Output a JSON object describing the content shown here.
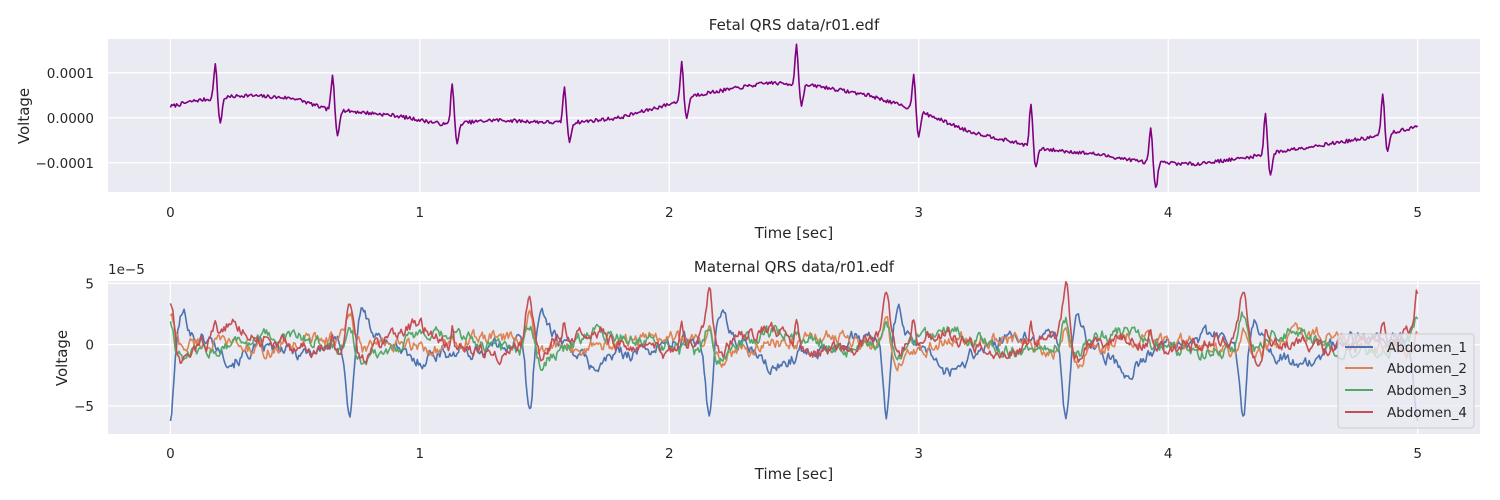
{
  "chart_data": [
    {
      "type": "line",
      "title": "Fetal QRS data/r01.edf",
      "xlabel": "Time [sec]",
      "ylabel": "Voltage",
      "xlim": [
        -0.25,
        5.25
      ],
      "ylim": [
        -0.000165,
        0.000175
      ],
      "xticks": [
        0,
        1,
        2,
        3,
        4,
        5
      ],
      "xtick_labels": [
        "0",
        "1",
        "2",
        "3",
        "4",
        "5"
      ],
      "yticks": [
        0.0001,
        0.0,
        -0.0001
      ],
      "ytick_labels": [
        "0.0001",
        "0.0000",
        "−0.0001"
      ],
      "series": [
        {
          "name": "Fetal QRS",
          "color": "#800080",
          "baseline": [
            [
              0.0,
              2.5e-05
            ],
            [
              0.1,
              3.8e-05
            ],
            [
              0.3,
              5e-05
            ],
            [
              0.5,
              4.3e-05
            ],
            [
              0.62,
              2e-05
            ],
            [
              0.9,
              5e-06
            ],
            [
              1.1,
              -1.5e-05
            ],
            [
              1.3,
              -5e-06
            ],
            [
              1.6,
              -1.2e-05
            ],
            [
              1.8,
              0.0
            ],
            [
              2.0,
              3e-05
            ],
            [
              2.1,
              5e-05
            ],
            [
              2.4,
              7.8e-05
            ],
            [
              2.6,
              7e-05
            ],
            [
              2.8,
              5e-05
            ],
            [
              3.0,
              1.5e-05
            ],
            [
              3.2,
              -3e-05
            ],
            [
              3.5,
              -7e-05
            ],
            [
              3.7,
              -8e-05
            ],
            [
              3.9,
              -9.8e-05
            ],
            [
              4.1,
              -0.000103
            ],
            [
              4.3,
              -9e-05
            ],
            [
              4.5,
              -7e-05
            ],
            [
              4.8,
              -4.5e-05
            ],
            [
              5.0,
              -2e-05
            ]
          ],
          "qrs_times": [
            0.18,
            0.65,
            1.13,
            1.58,
            2.05,
            2.51,
            2.98,
            3.45,
            3.93,
            4.39,
            4.86
          ],
          "qrs_peaks": [
            0.00012,
            9.2e-05,
            7.8e-05,
            7e-05,
            0.000122,
            0.000162,
            9.8e-05,
            3e-05,
            -2.5e-05,
            1e-05,
            5.2e-05
          ],
          "qrs_troughs": [
            -1.2e-05,
            -3.8e-05,
            -5.8e-05,
            -5.2e-05,
            -5e-06,
            3e-05,
            -3.8e-05,
            -0.000108,
            -0.000158,
            -0.000128,
            -7.8e-05
          ]
        }
      ]
    },
    {
      "type": "line",
      "title": "Maternal QRS data/r01.edf",
      "xlabel": "Time [sec]",
      "ylabel": "Voltage",
      "scale_label": "1e−5",
      "xlim": [
        -0.25,
        5.25
      ],
      "ylim": [
        -7.3,
        5.2
      ],
      "xticks": [
        0,
        1,
        2,
        3,
        4,
        5
      ],
      "xtick_labels": [
        "0",
        "1",
        "2",
        "3",
        "4",
        "5"
      ],
      "yticks": [
        5,
        0,
        -5
      ],
      "ytick_labels": [
        "5",
        "0",
        "−5"
      ],
      "qrs_times": [
        0.0,
        0.72,
        1.44,
        2.16,
        2.87,
        3.59,
        4.3,
        5.0
      ],
      "series": [
        {
          "name": "Abdomen_1",
          "color": "#4c72b0",
          "qrs_amp": -6.2
        },
        {
          "name": "Abdomen_2",
          "color": "#dd8452",
          "qrs_amp": 2.0
        },
        {
          "name": "Abdomen_3",
          "color": "#55a868",
          "qrs_amp": 2.3
        },
        {
          "name": "Abdomen_4",
          "color": "#c44e52",
          "qrs_amp": 4.2
        }
      ],
      "legend": {
        "loc": "lower-right",
        "entries": [
          "Abdomen_1",
          "Abdomen_2",
          "Abdomen_3",
          "Abdomen_4"
        ]
      }
    }
  ]
}
